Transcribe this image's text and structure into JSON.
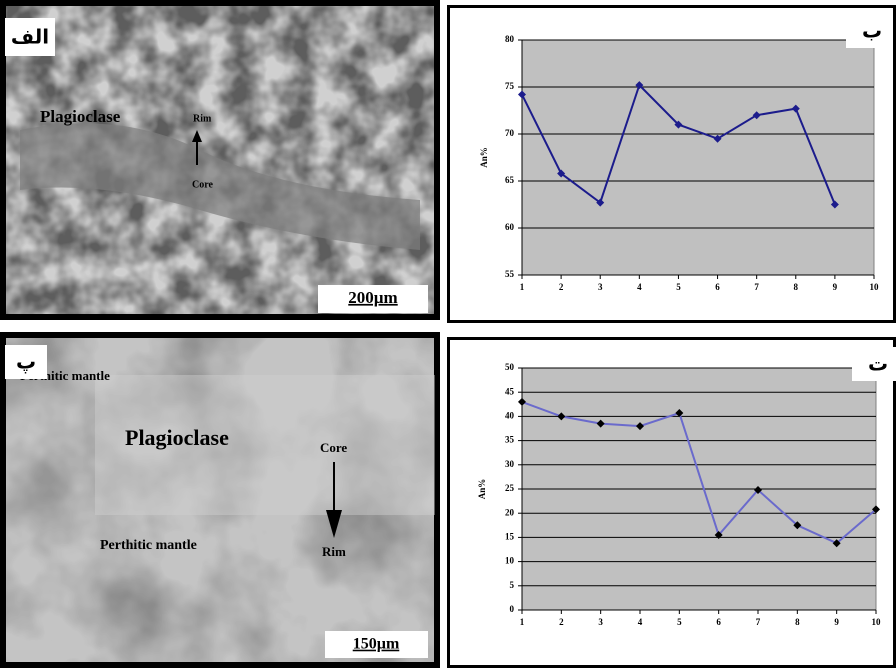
{
  "micrographs": [
    {
      "label": "الف",
      "annotations": [
        "Plagioclase",
        "Rim",
        "Core"
      ],
      "scale_bar": "200µm"
    },
    {
      "label": "پ",
      "annotations": [
        "Perthitic mantle",
        "Plagioclase",
        "Core",
        "Rim",
        "Perthitic mantle"
      ],
      "scale_bar": "150µm"
    }
  ],
  "chart_data": [
    {
      "type": "line",
      "panel_label": "ب",
      "ylabel": "An%",
      "x": [
        1,
        2,
        3,
        4,
        5,
        6,
        7,
        8,
        9
      ],
      "values": [
        74.2,
        65.8,
        62.7,
        75.2,
        71,
        69.5,
        72,
        72.7,
        62.5
      ],
      "color": "#1c1c8c",
      "marker_color": "#1c1c8c",
      "xlim": [
        1,
        10
      ],
      "xticks": [
        1,
        2,
        3,
        4,
        5,
        6,
        7,
        8,
        9,
        10
      ],
      "ylim": [
        55,
        80
      ],
      "yticks": [
        55,
        60,
        65,
        70,
        75,
        80
      ],
      "grid": true
    },
    {
      "type": "line",
      "panel_label": "ت",
      "ylabel": "An%",
      "x": [
        1,
        2,
        3,
        4,
        5,
        6,
        7,
        8,
        9,
        10
      ],
      "values": [
        43,
        40,
        38.5,
        38,
        40.7,
        15.5,
        24.8,
        17.5,
        13.8,
        20.8
      ],
      "color": "#6a6acc",
      "marker_color": "#000000",
      "xlim": [
        1,
        10
      ],
      "xticks": [
        1,
        2,
        3,
        4,
        5,
        6,
        7,
        8,
        9,
        10
      ],
      "ylim": [
        0,
        50
      ],
      "yticks": [
        0,
        5,
        10,
        15,
        20,
        25,
        30,
        35,
        40,
        45,
        50
      ],
      "grid": true
    }
  ]
}
